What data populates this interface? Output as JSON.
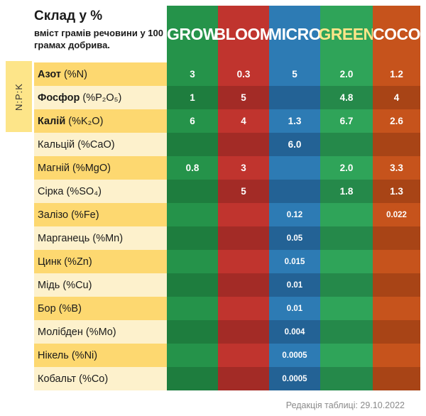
{
  "title": "Склад у %",
  "subtitle": "вміст грамів речовини у 100 грамах добрива.",
  "npk_label": "N:P:K",
  "columns": [
    {
      "label": "GROW",
      "text_color": "#ffffff"
    },
    {
      "label": "BLOOM",
      "text_color": "#ffffff"
    },
    {
      "label": "MICRO",
      "text_color": "#ffffff"
    },
    {
      "label": "GREEN",
      "text_color": "#fde589"
    },
    {
      "label": "COCO",
      "text_color": "#ffffff"
    }
  ],
  "rows": [
    {
      "name": "Азот",
      "formula": "(%N)",
      "bold": true,
      "values": [
        "3",
        "0.3",
        "5",
        "2.0",
        "1.2"
      ]
    },
    {
      "name": "Фосфор",
      "formula": "(%P₂O₅)",
      "bold": true,
      "values": [
        "1",
        "5",
        "",
        "4.8",
        "4"
      ]
    },
    {
      "name": "Калій",
      "formula": "(%K₂O)",
      "bold": true,
      "values": [
        "6",
        "4",
        "1.3",
        "6.7",
        "2.6"
      ]
    },
    {
      "name": "Кальцій",
      "formula": "(%CaO)",
      "bold": false,
      "values": [
        "",
        "",
        "6.0",
        "",
        ""
      ]
    },
    {
      "name": "Магній",
      "formula": "(%MgO)",
      "bold": false,
      "values": [
        "0.8",
        "3",
        "",
        "2.0",
        "3.3"
      ]
    },
    {
      "name": "Сірка",
      "formula": "(%SO₄)",
      "bold": false,
      "values": [
        "",
        "5",
        "",
        "1.8",
        "1.3"
      ]
    },
    {
      "name": "Залізо",
      "formula": "(%Fe)",
      "bold": false,
      "values": [
        "",
        "",
        "0.12",
        "",
        "0.022"
      ]
    },
    {
      "name": "Марганець",
      "formula": "(%Mn)",
      "bold": false,
      "values": [
        "",
        "",
        "0.05",
        "",
        ""
      ]
    },
    {
      "name": "Цинк",
      "formula": "(%Zn)",
      "bold": false,
      "values": [
        "",
        "",
        "0.015",
        "",
        ""
      ]
    },
    {
      "name": "Мідь",
      "formula": "(%Cu)",
      "bold": false,
      "values": [
        "",
        "",
        "0.01",
        "",
        ""
      ]
    },
    {
      "name": "Бор",
      "formula": "(%B)",
      "bold": false,
      "values": [
        "",
        "",
        "0.01",
        "",
        ""
      ]
    },
    {
      "name": "Молібден",
      "formula": "(%Mo)",
      "bold": false,
      "values": [
        "",
        "",
        "0.004",
        "",
        ""
      ]
    },
    {
      "name": "Нікель",
      "formula": "(%Ni)",
      "bold": false,
      "values": [
        "",
        "",
        "0.0005",
        "",
        ""
      ]
    },
    {
      "name": "Кобальт",
      "formula": "(%Co)",
      "bold": false,
      "values": [
        "",
        "",
        "0.0005",
        "",
        ""
      ]
    }
  ],
  "footer": "Редакція таблиці: 29.10.2022",
  "colors": {
    "grow": [
      "#25934a",
      "#1e7d3e"
    ],
    "bloom": [
      "#c0342e",
      "#a32b26"
    ],
    "micro": [
      "#2d7bb4",
      "#236295"
    ],
    "green": [
      "#2fa459",
      "#25894a"
    ],
    "coco": [
      "#c6531c",
      "#a84416"
    ],
    "label_dark": "#fdd870",
    "label_light": "#fdf1cc"
  }
}
